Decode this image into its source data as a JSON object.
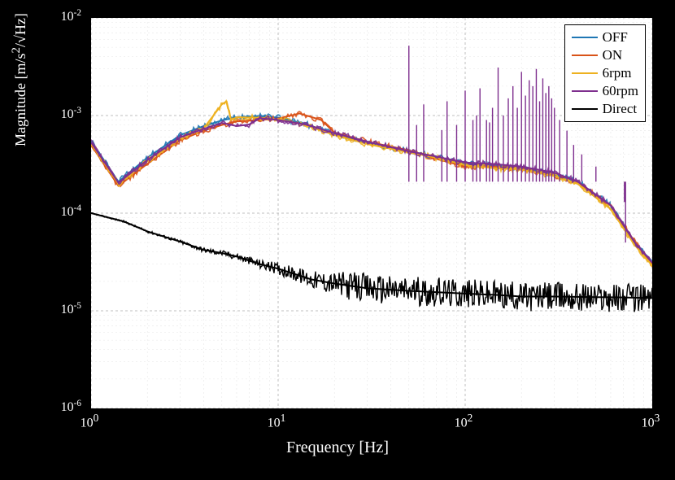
{
  "chart": {
    "type": "line",
    "background_color": "#000000",
    "plot_background": "#ffffff",
    "xlabel": "Frequency [Hz]",
    "ylabel": "Magnitude [m/s²/√Hz]",
    "label_fontsize": 20,
    "x_scale": "log",
    "y_scale": "log",
    "xlim": [
      1,
      1000
    ],
    "ylim": [
      1e-06,
      0.01
    ],
    "x_ticks_major": [
      1,
      10,
      100,
      1000
    ],
    "x_tick_labels": [
      "10^0",
      "10^1",
      "10^2",
      "10^3"
    ],
    "y_ticks_major": [
      1e-06,
      1e-05,
      0.0001,
      0.001,
      0.01
    ],
    "y_tick_labels": [
      "10^-6",
      "10^-5",
      "10^-4",
      "10^-3",
      "10^-2"
    ],
    "grid_major_color": "#bfbfbf",
    "grid_minor_color": "#e6e6e6",
    "line_width": 2,
    "legend": {
      "position": "top-right",
      "border_color": "#000000",
      "entries": [
        {
          "label": "OFF",
          "color": "#1f77b4"
        },
        {
          "label": "ON",
          "color": "#d95319"
        },
        {
          "label": "6rpm",
          "color": "#edb120"
        },
        {
          "label": "60rpm",
          "color": "#7e2f8e"
        },
        {
          "label": "Direct",
          "color": "#000000"
        }
      ]
    },
    "series": [
      {
        "name": "OFF",
        "color": "#1f77b4",
        "points": [
          [
            1,
            0.00055
          ],
          [
            1.4,
            0.00021
          ],
          [
            2,
            0.00037
          ],
          [
            3,
            0.00063
          ],
          [
            4,
            0.00078
          ],
          [
            5,
            0.00089
          ],
          [
            6,
            0.00096
          ],
          [
            8,
            0.00099
          ],
          [
            10,
            0.00095
          ],
          [
            14,
            0.00082
          ],
          [
            20,
            0.00065
          ],
          [
            30,
            0.00053
          ],
          [
            50,
            0.00043
          ],
          [
            70,
            0.00038
          ],
          [
            100,
            0.00032
          ],
          [
            140,
            0.00031
          ],
          [
            200,
            0.00029
          ],
          [
            300,
            0.00025
          ],
          [
            400,
            0.00021
          ],
          [
            600,
            0.00012
          ],
          [
            800,
            5e-05
          ],
          [
            1000,
            3.2e-05
          ]
        ]
      },
      {
        "name": "ON",
        "color": "#d95319",
        "points": [
          [
            1,
            0.0005
          ],
          [
            1.4,
            0.00019
          ],
          [
            2,
            0.00032
          ],
          [
            3,
            0.00056
          ],
          [
            4,
            0.0007
          ],
          [
            5,
            0.0008
          ],
          [
            6,
            0.00087
          ],
          [
            8,
            0.0009
          ],
          [
            10,
            0.00093
          ],
          [
            13,
            0.00105
          ],
          [
            17,
            0.0009
          ],
          [
            20,
            0.00067
          ],
          [
            30,
            0.00054
          ],
          [
            50,
            0.00044
          ],
          [
            70,
            0.00036
          ],
          [
            100,
            0.0003
          ],
          [
            140,
            0.0003
          ],
          [
            200,
            0.00028
          ],
          [
            300,
            0.00024
          ],
          [
            400,
            0.0002
          ],
          [
            600,
            0.00012
          ],
          [
            800,
            5.2e-05
          ],
          [
            1000,
            3e-05
          ]
        ]
      },
      {
        "name": "6rpm",
        "color": "#edb120",
        "points": [
          [
            1,
            0.00052
          ],
          [
            1.4,
            0.0002
          ],
          [
            2,
            0.00034
          ],
          [
            3,
            0.00059
          ],
          [
            4,
            0.00074
          ],
          [
            5,
            0.0013
          ],
          [
            5.3,
            0.0014
          ],
          [
            5.6,
            0.0009
          ],
          [
            6,
            0.00096
          ],
          [
            8,
            0.00095
          ],
          [
            10,
            0.00092
          ],
          [
            14,
            0.0008
          ],
          [
            20,
            0.00063
          ],
          [
            30,
            0.00051
          ],
          [
            50,
            0.00042
          ],
          [
            70,
            0.00037
          ],
          [
            100,
            0.00031
          ],
          [
            140,
            0.00029
          ],
          [
            200,
            0.00028
          ],
          [
            300,
            0.00024
          ],
          [
            400,
            0.0002
          ],
          [
            600,
            0.00011
          ],
          [
            800,
            4.8e-05
          ],
          [
            1000,
            2.9e-05
          ]
        ]
      },
      {
        "name": "60rpm",
        "color": "#7e2f8e",
        "points": [
          [
            1,
            0.00053
          ],
          [
            1.4,
            0.000205
          ],
          [
            2,
            0.00035
          ],
          [
            3,
            0.0006
          ],
          [
            4,
            0.00073
          ],
          [
            5,
            0.00084
          ],
          [
            6,
            0.00078
          ],
          [
            7,
            0.00081
          ],
          [
            8,
            0.00094
          ],
          [
            10,
            0.0009
          ],
          [
            14,
            0.00081
          ],
          [
            20,
            0.00066
          ],
          [
            30,
            0.00054
          ],
          [
            50,
            0.00043
          ],
          [
            70,
            0.00038
          ],
          [
            100,
            0.00033
          ],
          [
            140,
            0.00032
          ],
          [
            200,
            0.0003
          ],
          [
            300,
            0.00026
          ],
          [
            400,
            0.00021
          ],
          [
            600,
            0.00012
          ],
          [
            800,
            5.1e-05
          ],
          [
            1000,
            3.1e-05
          ]
        ],
        "spikes": [
          [
            50,
            0.0052
          ],
          [
            55,
            0.0008
          ],
          [
            60,
            0.0013
          ],
          [
            75,
            0.00071
          ],
          [
            80,
            0.0014
          ],
          [
            90,
            0.0008
          ],
          [
            100,
            0.0018
          ],
          [
            110,
            0.0009
          ],
          [
            115,
            0.001
          ],
          [
            120,
            0.0019
          ],
          [
            130,
            0.0009
          ],
          [
            135,
            0.00085
          ],
          [
            140,
            0.0012
          ],
          [
            150,
            0.0031
          ],
          [
            160,
            0.001
          ],
          [
            170,
            0.0015
          ],
          [
            180,
            0.002
          ],
          [
            190,
            0.0012
          ],
          [
            200,
            0.0028
          ],
          [
            210,
            0.0016
          ],
          [
            220,
            0.0023
          ],
          [
            230,
            0.002
          ],
          [
            240,
            0.003
          ],
          [
            250,
            0.0014
          ],
          [
            260,
            0.0024
          ],
          [
            270,
            0.0017
          ],
          [
            280,
            0.002
          ],
          [
            290,
            0.0015
          ],
          [
            300,
            0.0012
          ],
          [
            320,
            0.0009
          ],
          [
            350,
            0.0007
          ],
          [
            380,
            0.0005
          ],
          [
            420,
            0.0004
          ],
          [
            500,
            0.0003
          ],
          [
            710,
            0.00013
          ],
          [
            720,
            5e-05
          ]
        ],
        "baseline_for_spikes": 0.00021
      },
      {
        "name": "Direct",
        "color": "#000000",
        "points": [
          [
            1,
            0.0001
          ],
          [
            1.5,
            8.2e-05
          ],
          [
            2,
            6.5e-05
          ],
          [
            3,
            5.1e-05
          ],
          [
            4,
            4.2e-05
          ],
          [
            5,
            3.9e-05
          ],
          [
            6,
            3.6e-05
          ],
          [
            8,
            3e-05
          ],
          [
            10,
            2.7e-05
          ],
          [
            15,
            2.1e-05
          ],
          [
            20,
            1.9e-05
          ],
          [
            30,
            1.7e-05
          ],
          [
            50,
            1.6e-05
          ],
          [
            70,
            1.55e-05
          ],
          [
            100,
            1.5e-05
          ],
          [
            150,
            1.45e-05
          ],
          [
            200,
            1.4e-05
          ],
          [
            300,
            1.4e-05
          ],
          [
            500,
            1.38e-05
          ],
          [
            700,
            1.37e-05
          ],
          [
            1000,
            1.35e-05
          ]
        ],
        "noise_amplitude_log": 0.15
      }
    ]
  }
}
